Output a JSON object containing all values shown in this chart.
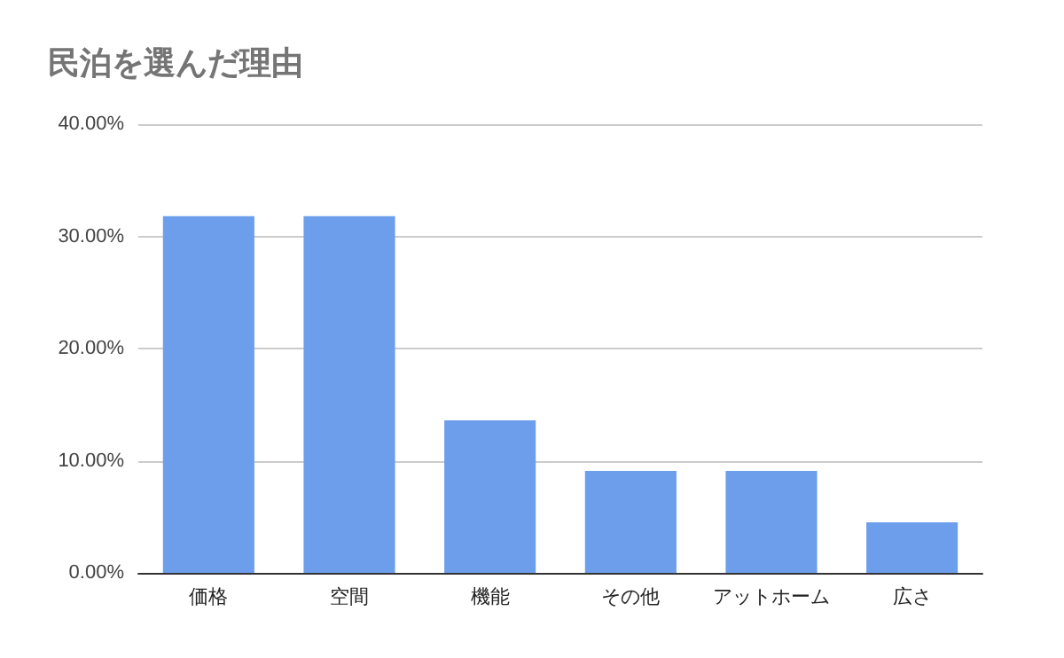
{
  "chart_data": {
    "type": "bar",
    "title": "民泊を選んだ理由",
    "categories": [
      "価格",
      "空間",
      "機能",
      "その他",
      "アットホーム",
      "広さ"
    ],
    "values": [
      31.8,
      31.8,
      13.6,
      9.1,
      9.1,
      4.5
    ],
    "color": "#6d9eeb",
    "ylim": [
      0,
      40
    ],
    "yticks": [
      {
        "value": 0,
        "label": "0.00%"
      },
      {
        "value": 10,
        "label": "10.00%"
      },
      {
        "value": 20,
        "label": "20.00%"
      },
      {
        "value": 30,
        "label": "30.00%"
      },
      {
        "value": 40,
        "label": "40.00%"
      }
    ],
    "grid": "y"
  }
}
